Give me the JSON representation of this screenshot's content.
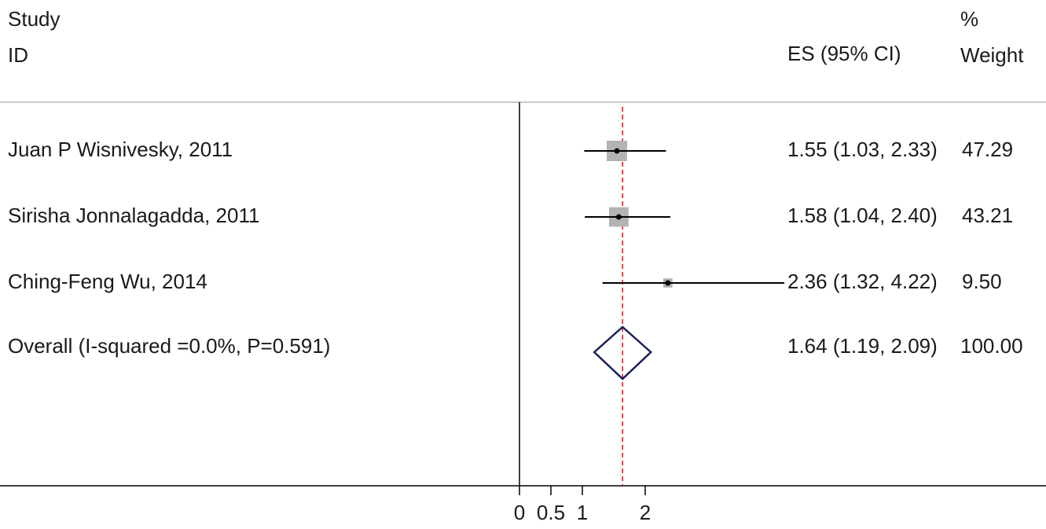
{
  "header": {
    "study_line1": "Study",
    "study_line2": "ID",
    "es_label": "ES (95% CI)",
    "weight_line1": "%",
    "weight_line2": "Weight"
  },
  "chart_data": {
    "type": "forest",
    "x_ticks": [
      0,
      0.5,
      1,
      2
    ],
    "x_tick_labels": [
      "0",
      "0.5",
      "1",
      "2"
    ],
    "null_line": 0,
    "overall_line": 1.64,
    "studies": [
      {
        "label": "Juan P Wisnivesky, 2011",
        "es": 1.55,
        "lower": 1.03,
        "upper": 2.33,
        "es_text": "1.55 (1.03, 2.33)",
        "weight": 47.29,
        "weight_text": "47.29"
      },
      {
        "label": "Sirisha Jonnalagadda, 2011",
        "es": 1.58,
        "lower": 1.04,
        "upper": 2.4,
        "es_text": "1.58 (1.04, 2.40)",
        "weight": 43.21,
        "weight_text": "43.21"
      },
      {
        "label": "Ching-Feng Wu, 2014",
        "es": 2.36,
        "lower": 1.32,
        "upper": 4.22,
        "es_text": "2.36 (1.32, 4.22)",
        "weight": 9.5,
        "weight_text": "9.50"
      }
    ],
    "overall": {
      "label": "Overall (I-squared =0.0%, P=0.591)",
      "es": 1.64,
      "lower": 1.19,
      "upper": 2.09,
      "es_text": "1.64 (1.19, 2.09)",
      "weight_text": "100.00"
    },
    "colors": {
      "box": "#b3b3b3",
      "ci_line": "#000000",
      "diamond": "#1a1f5c",
      "overall_line": "#b22222",
      "axis": "#000000",
      "header_rule": "#c8c8c8"
    }
  }
}
